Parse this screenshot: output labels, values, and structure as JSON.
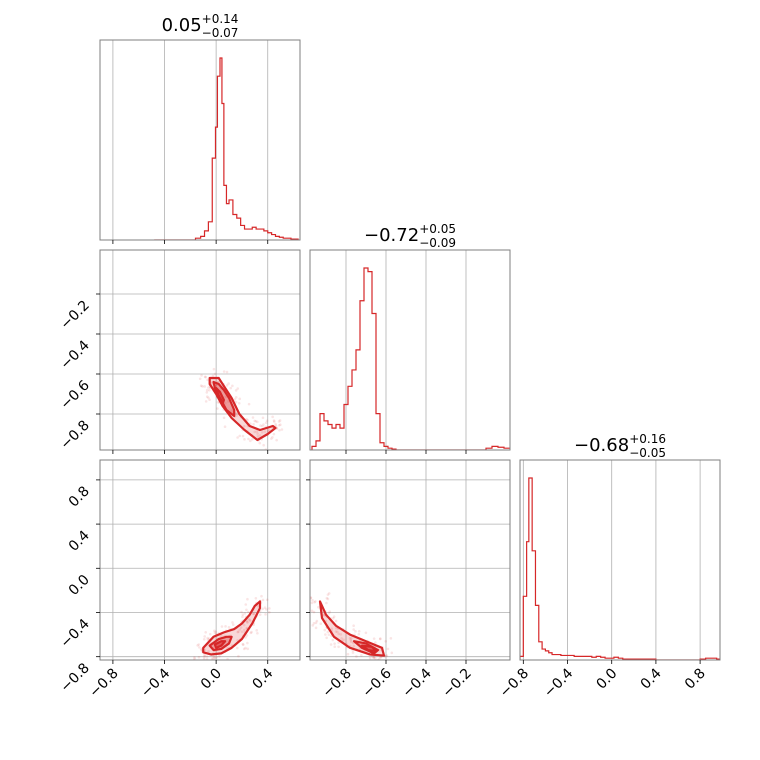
{
  "chart_data": {
    "type": "corner",
    "color": "#d62728",
    "parameters": [
      {
        "median": "0.05",
        "plus": "+0.14",
        "minus": "−0.07",
        "range": [
          -0.9,
          0.65
        ],
        "ticks": [
          "−0.8",
          "−0.4",
          "0.0",
          "0.4"
        ],
        "tick_values": [
          -0.8,
          -0.4,
          0.0,
          0.4
        ]
      },
      {
        "median": "−0.72",
        "plus": "+0.05",
        "minus": "−0.09",
        "range": [
          -0.98,
          0.02
        ],
        "ticks": [
          "−0.8",
          "−0.6",
          "−0.4",
          "−0.2"
        ],
        "tick_values": [
          -0.8,
          -0.6,
          -0.4,
          -0.2
        ]
      },
      {
        "median": "−0.68",
        "plus": "+0.16",
        "minus": "−0.05",
        "range": [
          -0.83,
          0.98
        ],
        "ticks": [
          "−0.8",
          "−0.4",
          "0.0",
          "0.4",
          "0.8"
        ],
        "tick_values": [
          -0.8,
          -0.4,
          0.0,
          0.4,
          0.8
        ]
      }
    ],
    "histograms": [
      {
        "param": 0,
        "x": [
          -0.48,
          -0.44,
          -0.4,
          -0.36,
          -0.32,
          -0.28,
          -0.24,
          -0.2,
          -0.16,
          -0.12,
          -0.09,
          -0.06,
          -0.03,
          -0.005,
          0.01,
          0.03,
          0.045,
          0.06,
          0.08,
          0.1,
          0.13,
          0.16,
          0.19,
          0.22,
          0.25,
          0.28,
          0.31,
          0.34,
          0.37,
          0.4,
          0.43,
          0.46,
          0.49,
          0.52,
          0.55,
          0.58,
          0.61
        ],
        "y": [
          0,
          0,
          0,
          0,
          0,
          0,
          0,
          0,
          0.01,
          0.02,
          0.05,
          0.1,
          0.45,
          0.62,
          0.9,
          1.0,
          0.75,
          0.3,
          0.2,
          0.22,
          0.14,
          0.12,
          0.08,
          0.06,
          0.06,
          0.07,
          0.06,
          0.06,
          0.05,
          0.04,
          0.03,
          0.02,
          0.015,
          0.01,
          0.01,
          0.005,
          0.005
        ]
      },
      {
        "param": 1,
        "x": [
          -0.97,
          -0.95,
          -0.93,
          -0.91,
          -0.89,
          -0.87,
          -0.85,
          -0.83,
          -0.81,
          -0.79,
          -0.77,
          -0.75,
          -0.73,
          -0.71,
          -0.69,
          -0.67,
          -0.65,
          -0.63,
          -0.61,
          -0.59,
          -0.57,
          -0.55,
          -0.5,
          -0.4,
          -0.3,
          -0.2,
          -0.15,
          -0.1,
          -0.07,
          -0.04,
          -0.01
        ],
        "y": [
          0.02,
          0.05,
          0.2,
          0.16,
          0.14,
          0.12,
          0.14,
          0.12,
          0.25,
          0.35,
          0.44,
          0.55,
          0.82,
          1.0,
          0.98,
          0.75,
          0.2,
          0.04,
          0.02,
          0.01,
          0.005,
          0,
          0,
          0,
          0,
          0,
          0,
          0.01,
          0.02,
          0.015,
          0.01
        ]
      },
      {
        "param": 2,
        "x": [
          -0.83,
          -0.8,
          -0.77,
          -0.75,
          -0.72,
          -0.69,
          -0.66,
          -0.63,
          -0.6,
          -0.57,
          -0.54,
          -0.5,
          -0.46,
          -0.42,
          -0.38,
          -0.34,
          -0.3,
          -0.26,
          -0.22,
          -0.18,
          -0.14,
          -0.1,
          -0.06,
          -0.02,
          0.02,
          0.06,
          0.1,
          0.2,
          0.4,
          0.6,
          0.8,
          0.85,
          0.9,
          0.95
        ],
        "y": [
          0.02,
          0.35,
          0.65,
          1.0,
          0.6,
          0.3,
          0.1,
          0.06,
          0.05,
          0.04,
          0.03,
          0.03,
          0.025,
          0.025,
          0.025,
          0.02,
          0.02,
          0.02,
          0.02,
          0.015,
          0.02,
          0.015,
          0.01,
          0.01,
          0.015,
          0.01,
          0.005,
          0.005,
          0,
          0,
          0.005,
          0.01,
          0.01,
          0.005
        ]
      }
    ],
    "contours_2d": [
      {
        "x_param": 0,
        "y_param": 1,
        "levels": [
          {
            "x": [
              -0.05,
              0.02,
              0.06,
              0.12,
              0.18,
              0.26,
              0.34,
              0.44,
              0.46,
              0.4,
              0.32,
              0.22,
              0.12,
              0.05,
              0.0,
              -0.05
            ],
            "y": [
              -0.62,
              -0.62,
              -0.66,
              -0.72,
              -0.8,
              -0.86,
              -0.88,
              -0.86,
              -0.87,
              -0.9,
              -0.93,
              -0.88,
              -0.82,
              -0.76,
              -0.7,
              -0.65
            ]
          },
          {
            "x": [
              -0.02,
              0.02,
              0.06,
              0.1,
              0.14,
              0.14,
              0.08,
              0.03,
              -0.01
            ],
            "y": [
              -0.64,
              -0.65,
              -0.68,
              -0.72,
              -0.78,
              -0.81,
              -0.78,
              -0.72,
              -0.67
            ]
          },
          {
            "x": [
              0.0,
              0.03,
              0.06,
              0.05,
              0.02
            ],
            "y": [
              -0.67,
              -0.69,
              -0.73,
              -0.75,
              -0.71
            ]
          }
        ]
      },
      {
        "x_param": 0,
        "y_param": 2,
        "levels": [
          {
            "x": [
              -0.1,
              -0.02,
              0.06,
              0.14,
              0.2,
              0.26,
              0.3,
              0.34,
              0.34,
              0.28,
              0.2,
              0.12,
              0.04,
              -0.04,
              -0.1
            ],
            "y": [
              -0.72,
              -0.62,
              -0.58,
              -0.55,
              -0.5,
              -0.42,
              -0.34,
              -0.3,
              -0.36,
              -0.5,
              -0.64,
              -0.72,
              -0.77,
              -0.78,
              -0.76
            ]
          },
          {
            "x": [
              -0.05,
              0.02,
              0.08,
              0.12,
              0.1,
              0.04,
              -0.02
            ],
            "y": [
              -0.7,
              -0.64,
              -0.62,
              -0.62,
              -0.68,
              -0.73,
              -0.74
            ]
          },
          {
            "x": [
              -0.01,
              0.04,
              0.07,
              0.04,
              0.0
            ],
            "y": [
              -0.69,
              -0.66,
              -0.66,
              -0.7,
              -0.72
            ]
          }
        ]
      },
      {
        "x_param": 1,
        "y_param": 2,
        "levels": [
          {
            "x": [
              -0.93,
              -0.9,
              -0.85,
              -0.78,
              -0.7,
              -0.62,
              -0.61,
              -0.68,
              -0.78,
              -0.86,
              -0.92
            ],
            "y": [
              -0.3,
              -0.42,
              -0.52,
              -0.6,
              -0.66,
              -0.72,
              -0.79,
              -0.78,
              -0.72,
              -0.62,
              -0.45
            ]
          },
          {
            "x": [
              -0.76,
              -0.7,
              -0.64,
              -0.66,
              -0.72
            ],
            "y": [
              -0.66,
              -0.68,
              -0.74,
              -0.77,
              -0.72
            ]
          },
          {
            "x": [
              -0.72,
              -0.67,
              -0.65,
              -0.69
            ],
            "y": [
              -0.7,
              -0.71,
              -0.75,
              -0.74
            ]
          }
        ]
      }
    ],
    "grid": true
  }
}
